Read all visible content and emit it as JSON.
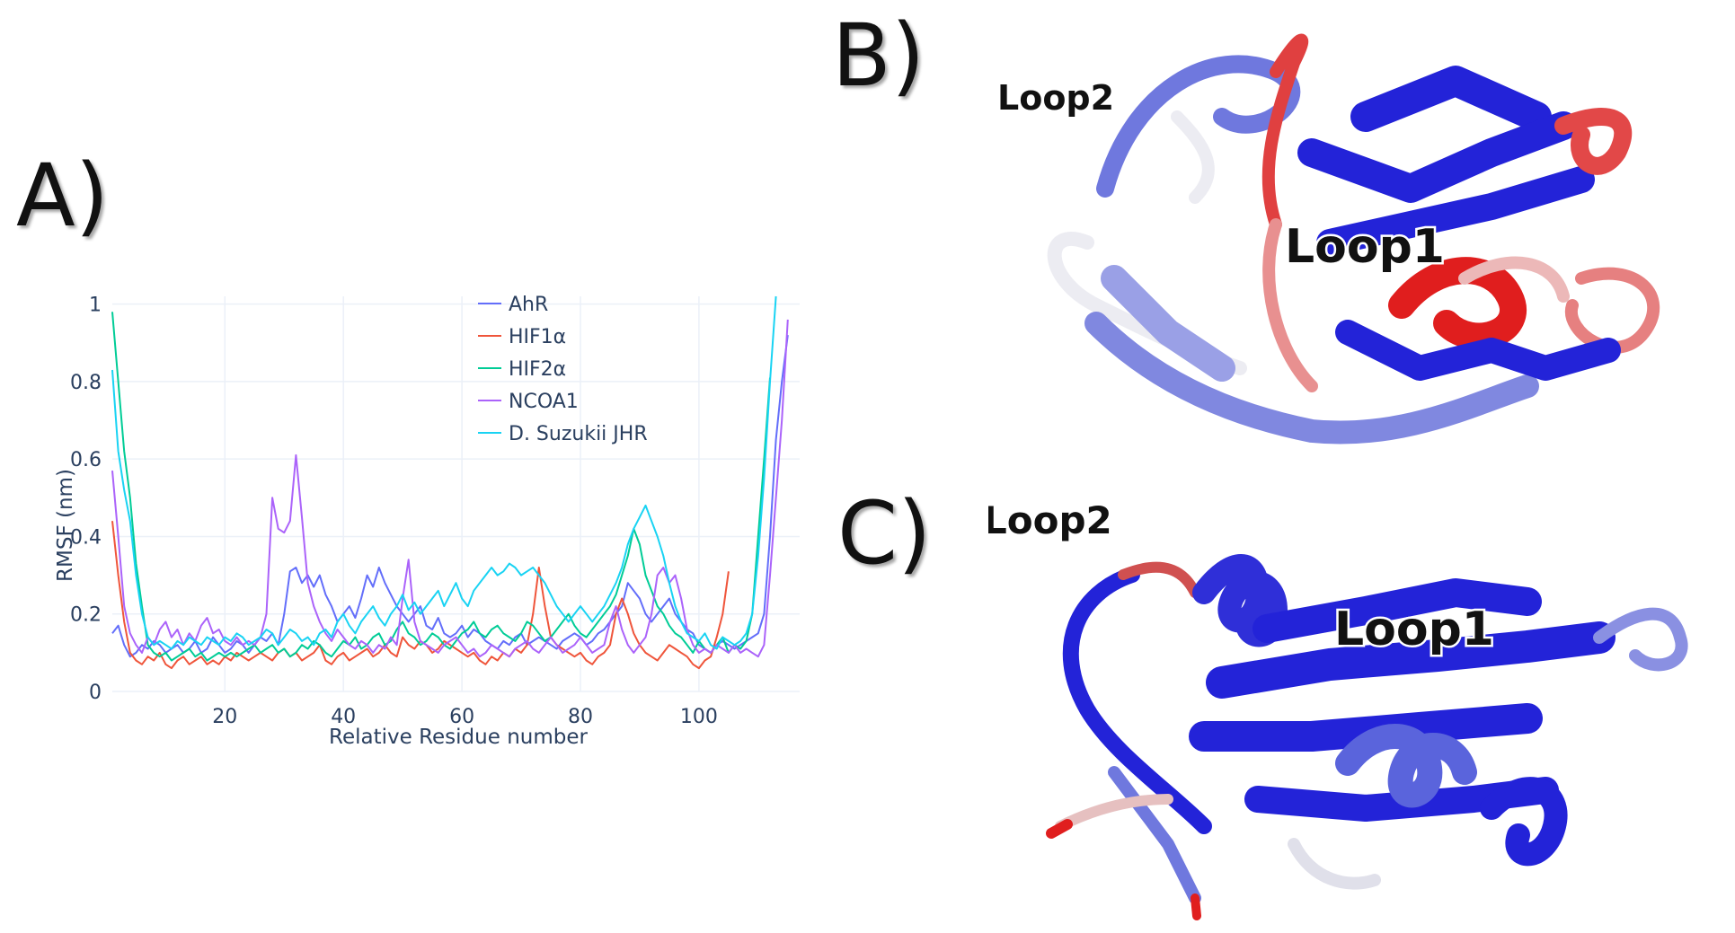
{
  "panels": {
    "a_label": "A)",
    "b_label": "B)",
    "c_label": "C)"
  },
  "structures": {
    "b": {
      "loop1": "Loop1",
      "loop2": "Loop2"
    },
    "c": {
      "loop1": "Loop1",
      "loop2": "Loop2"
    }
  },
  "colors": {
    "stable": "#2323d8",
    "intermediate": "#e8e8f0",
    "flexible": "#e01e1e"
  },
  "chart_data": {
    "type": "line",
    "title": "",
    "xlabel": "Relative Residue number",
    "ylabel": "RMSF (nm)",
    "xlim": [
      1,
      117
    ],
    "ylim": [
      0,
      1.02
    ],
    "xticks": [
      20,
      40,
      60,
      80,
      100
    ],
    "yticks": [
      0,
      0.2,
      0.4,
      0.6,
      0.8,
      1
    ],
    "ytick_labels": [
      "0",
      "0.2",
      "0.4",
      "0.6",
      "0.8",
      "1"
    ],
    "legend_position": "top-center",
    "series": [
      {
        "name": "AhR",
        "color": "#636efa",
        "x_start": 1,
        "values": [
          0.15,
          0.17,
          0.12,
          0.09,
          0.1,
          0.12,
          0.11,
          0.13,
          0.12,
          0.1,
          0.11,
          0.12,
          0.1,
          0.11,
          0.13,
          0.1,
          0.11,
          0.14,
          0.12,
          0.1,
          0.11,
          0.13,
          0.12,
          0.1,
          0.12,
          0.14,
          0.13,
          0.15,
          0.12,
          0.2,
          0.31,
          0.32,
          0.28,
          0.3,
          0.27,
          0.3,
          0.25,
          0.22,
          0.18,
          0.2,
          0.22,
          0.19,
          0.24,
          0.3,
          0.27,
          0.32,
          0.28,
          0.25,
          0.22,
          0.2,
          0.18,
          0.2,
          0.22,
          0.17,
          0.16,
          0.19,
          0.15,
          0.14,
          0.15,
          0.17,
          0.14,
          0.16,
          0.15,
          0.13,
          0.12,
          0.11,
          0.13,
          0.12,
          0.14,
          0.15,
          0.12,
          0.13,
          0.14,
          0.13,
          0.12,
          0.11,
          0.13,
          0.14,
          0.15,
          0.14,
          0.12,
          0.13,
          0.15,
          0.16,
          0.18,
          0.2,
          0.22,
          0.28,
          0.26,
          0.24,
          0.2,
          0.18,
          0.2,
          0.22,
          0.24,
          0.2,
          0.18,
          0.16,
          0.15,
          0.12,
          0.11,
          0.1,
          0.12,
          0.13,
          0.12,
          0.11,
          0.12,
          0.13,
          0.14,
          0.15,
          0.2,
          0.4,
          0.65,
          0.8,
          0.92
        ]
      },
      {
        "name": "HIF1α",
        "color": "#ef553b",
        "x_start": 1,
        "values": [
          0.44,
          0.3,
          0.18,
          0.1,
          0.08,
          0.07,
          0.09,
          0.08,
          0.1,
          0.07,
          0.06,
          0.08,
          0.09,
          0.07,
          0.08,
          0.09,
          0.07,
          0.08,
          0.07,
          0.09,
          0.08,
          0.1,
          0.09,
          0.08,
          0.09,
          0.1,
          0.09,
          0.08,
          0.1,
          0.11,
          0.09,
          0.1,
          0.08,
          0.09,
          0.1,
          0.12,
          0.08,
          0.07,
          0.09,
          0.1,
          0.08,
          0.09,
          0.1,
          0.11,
          0.09,
          0.1,
          0.12,
          0.1,
          0.09,
          0.14,
          0.12,
          0.11,
          0.13,
          0.12,
          0.1,
          0.11,
          0.13,
          0.12,
          0.11,
          0.1,
          0.09,
          0.1,
          0.08,
          0.07,
          0.09,
          0.08,
          0.1,
          0.09,
          0.11,
          0.1,
          0.12,
          0.2,
          0.32,
          0.22,
          0.14,
          0.12,
          0.11,
          0.1,
          0.09,
          0.1,
          0.08,
          0.07,
          0.09,
          0.1,
          0.12,
          0.2,
          0.24,
          0.2,
          0.15,
          0.12,
          0.1,
          0.09,
          0.08,
          0.1,
          0.12,
          0.11,
          0.1,
          0.09,
          0.07,
          0.06,
          0.08,
          0.09,
          0.14,
          0.2,
          0.31
        ]
      },
      {
        "name": "HIF2α",
        "color": "#00cc96",
        "x_start": 1,
        "values": [
          0.98,
          0.8,
          0.62,
          0.5,
          0.33,
          0.22,
          0.12,
          0.1,
          0.09,
          0.1,
          0.08,
          0.09,
          0.1,
          0.11,
          0.09,
          0.1,
          0.08,
          0.09,
          0.1,
          0.09,
          0.1,
          0.09,
          0.1,
          0.11,
          0.12,
          0.1,
          0.11,
          0.12,
          0.1,
          0.11,
          0.09,
          0.1,
          0.12,
          0.11,
          0.13,
          0.12,
          0.1,
          0.09,
          0.11,
          0.13,
          0.12,
          0.14,
          0.11,
          0.12,
          0.14,
          0.15,
          0.12,
          0.13,
          0.16,
          0.18,
          0.15,
          0.14,
          0.12,
          0.13,
          0.15,
          0.14,
          0.12,
          0.11,
          0.13,
          0.15,
          0.16,
          0.18,
          0.15,
          0.14,
          0.16,
          0.17,
          0.15,
          0.14,
          0.13,
          0.15,
          0.18,
          0.17,
          0.15,
          0.13,
          0.14,
          0.16,
          0.18,
          0.2,
          0.17,
          0.15,
          0.14,
          0.16,
          0.18,
          0.2,
          0.22,
          0.25,
          0.3,
          0.35,
          0.42,
          0.38,
          0.3,
          0.26,
          0.22,
          0.2,
          0.17,
          0.15,
          0.14,
          0.12,
          0.1,
          0.13,
          0.11,
          0.1,
          0.12,
          0.14,
          0.1,
          0.12,
          0.11,
          0.13,
          0.2,
          0.4,
          0.6,
          0.81
        ]
      },
      {
        "name": "NCOA1",
        "color": "#ab63fa",
        "x_start": 1,
        "values": [
          0.57,
          0.4,
          0.22,
          0.15,
          0.12,
          0.1,
          0.14,
          0.12,
          0.16,
          0.18,
          0.14,
          0.16,
          0.12,
          0.15,
          0.13,
          0.17,
          0.19,
          0.15,
          0.16,
          0.13,
          0.12,
          0.14,
          0.12,
          0.13,
          0.12,
          0.14,
          0.2,
          0.5,
          0.42,
          0.41,
          0.44,
          0.61,
          0.45,
          0.28,
          0.22,
          0.18,
          0.15,
          0.13,
          0.16,
          0.14,
          0.12,
          0.11,
          0.13,
          0.12,
          0.1,
          0.12,
          0.11,
          0.14,
          0.12,
          0.24,
          0.34,
          0.18,
          0.13,
          0.12,
          0.11,
          0.1,
          0.12,
          0.13,
          0.14,
          0.12,
          0.1,
          0.11,
          0.09,
          0.1,
          0.12,
          0.11,
          0.1,
          0.09,
          0.11,
          0.12,
          0.13,
          0.11,
          0.1,
          0.12,
          0.14,
          0.12,
          0.1,
          0.11,
          0.12,
          0.14,
          0.12,
          0.1,
          0.11,
          0.12,
          0.18,
          0.22,
          0.16,
          0.12,
          0.1,
          0.12,
          0.14,
          0.2,
          0.3,
          0.32,
          0.28,
          0.3,
          0.24,
          0.16,
          0.12,
          0.1,
          0.11,
          0.1,
          0.12,
          0.11,
          0.1,
          0.12,
          0.1,
          0.11,
          0.1,
          0.09,
          0.12,
          0.3,
          0.5,
          0.7,
          0.96
        ]
      },
      {
        "name": "D. Suzukii JHR",
        "color": "#19d3f3",
        "x_start": 1,
        "values": [
          0.83,
          0.62,
          0.52,
          0.44,
          0.3,
          0.2,
          0.14,
          0.12,
          0.13,
          0.12,
          0.11,
          0.13,
          0.12,
          0.14,
          0.13,
          0.12,
          0.14,
          0.13,
          0.12,
          0.14,
          0.13,
          0.15,
          0.14,
          0.12,
          0.13,
          0.14,
          0.16,
          0.15,
          0.12,
          0.14,
          0.16,
          0.15,
          0.13,
          0.14,
          0.12,
          0.15,
          0.16,
          0.14,
          0.18,
          0.2,
          0.17,
          0.15,
          0.18,
          0.2,
          0.22,
          0.19,
          0.17,
          0.2,
          0.22,
          0.25,
          0.21,
          0.23,
          0.2,
          0.22,
          0.24,
          0.26,
          0.22,
          0.25,
          0.28,
          0.24,
          0.22,
          0.26,
          0.28,
          0.3,
          0.32,
          0.3,
          0.31,
          0.33,
          0.32,
          0.3,
          0.31,
          0.32,
          0.3,
          0.28,
          0.25,
          0.22,
          0.2,
          0.18,
          0.2,
          0.22,
          0.2,
          0.18,
          0.2,
          0.22,
          0.25,
          0.28,
          0.32,
          0.38,
          0.42,
          0.45,
          0.48,
          0.44,
          0.4,
          0.35,
          0.28,
          0.22,
          0.18,
          0.15,
          0.14,
          0.13,
          0.15,
          0.12,
          0.11,
          0.14,
          0.13,
          0.12,
          0.13,
          0.15,
          0.2,
          0.35,
          0.55,
          0.8,
          1.02
        ]
      }
    ]
  }
}
